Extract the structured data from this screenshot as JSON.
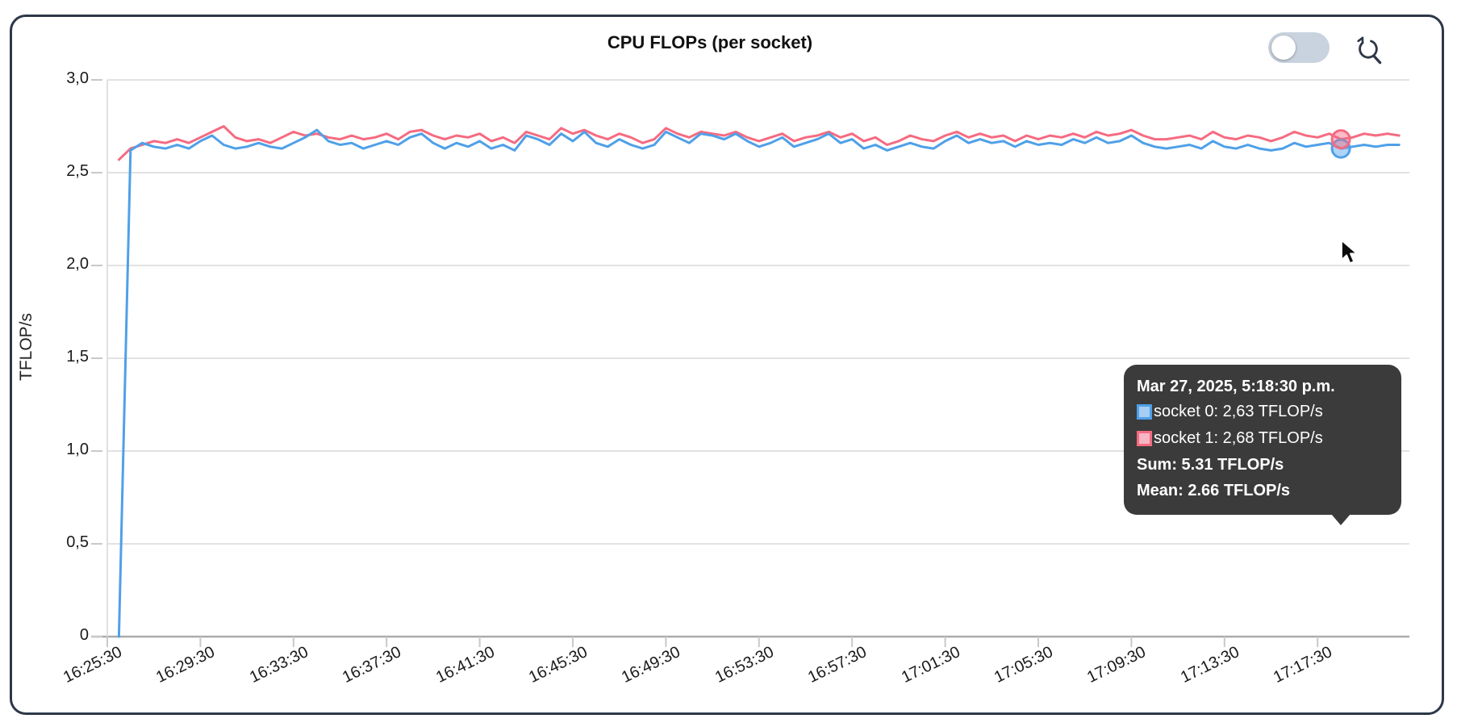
{
  "header": {
    "title": "CPU FLOPs (per socket)"
  },
  "controls": {
    "toggle": {
      "name": "toggle-switch",
      "on": false
    },
    "reset_zoom": {
      "name": "reset-zoom-icon"
    }
  },
  "colors": {
    "socket0": "#4FA0E8",
    "socket1": "#F56B81",
    "socket0_swatch_fill": "#A6CDF2",
    "socket1_swatch_fill": "#F7B6C4",
    "grid": "#D9D9D9",
    "axis": "#ABABAB",
    "tick": "#C9C9C9",
    "tooltip_bg": "#3B3B3B",
    "panel_border": "#2D3748"
  },
  "y_axis": {
    "label": "TFLOP/s",
    "ticks": [
      "3,0",
      "2,5",
      "2,0",
      "1,5",
      "1,0",
      "0,5",
      "0"
    ],
    "tick_values": [
      3.0,
      2.5,
      2.0,
      1.5,
      1.0,
      0.5,
      0
    ]
  },
  "x_axis": {
    "ticks": [
      "16:25:30",
      "16:29:30",
      "16:33:30",
      "16:37:30",
      "16:41:30",
      "16:45:30",
      "16:49:30",
      "16:53:30",
      "16:57:30",
      "17:01:30",
      "17:05:30",
      "17:09:30",
      "17:13:30",
      "17:17:30"
    ]
  },
  "tooltip": {
    "title": "Mar 27, 2025, 5:18:30 p.m.",
    "rows": [
      {
        "label": "socket 0: 2,63 TFLOP/s"
      },
      {
        "label": "socket 1: 2,68 TFLOP/s"
      }
    ],
    "sum": "Sum: 5.31 TFLOP/s",
    "mean": "Mean: 2.66 TFLOP/s"
  },
  "chart_data": {
    "type": "line",
    "title": "CPU FLOPs (per socket)",
    "xlabel": "",
    "ylabel": "TFLOP/s",
    "ylim": [
      0,
      3.0
    ],
    "x_start": "16:26:00",
    "x_interval_seconds": 30,
    "x_tick_labels": [
      "16:25:30",
      "16:29:30",
      "16:33:30",
      "16:37:30",
      "16:41:30",
      "16:45:30",
      "16:49:30",
      "16:53:30",
      "16:57:30",
      "17:01:30",
      "17:05:30",
      "17:09:30",
      "17:13:30",
      "17:17:30"
    ],
    "grid": "horizontal-only",
    "legend_position": "tooltip",
    "hover": {
      "index": 105,
      "time": "17:18:30",
      "socket0": 2.63,
      "socket1": 2.68,
      "sum": 5.31,
      "mean": 2.66
    },
    "series": [
      {
        "name": "socket 0",
        "color": "#4FA0E8",
        "values": [
          0,
          2.62,
          2.66,
          2.64,
          2.63,
          2.65,
          2.63,
          2.67,
          2.7,
          2.65,
          2.63,
          2.64,
          2.66,
          2.64,
          2.63,
          2.66,
          2.69,
          2.73,
          2.67,
          2.65,
          2.66,
          2.63,
          2.65,
          2.67,
          2.65,
          2.69,
          2.71,
          2.66,
          2.63,
          2.66,
          2.64,
          2.67,
          2.63,
          2.65,
          2.62,
          2.7,
          2.68,
          2.65,
          2.71,
          2.67,
          2.72,
          2.66,
          2.64,
          2.68,
          2.65,
          2.63,
          2.65,
          2.72,
          2.69,
          2.66,
          2.71,
          2.7,
          2.68,
          2.71,
          2.67,
          2.64,
          2.66,
          2.69,
          2.64,
          2.66,
          2.68,
          2.71,
          2.66,
          2.68,
          2.63,
          2.65,
          2.62,
          2.64,
          2.66,
          2.64,
          2.63,
          2.67,
          2.7,
          2.66,
          2.68,
          2.66,
          2.67,
          2.64,
          2.67,
          2.65,
          2.66,
          2.65,
          2.68,
          2.66,
          2.69,
          2.66,
          2.67,
          2.7,
          2.66,
          2.64,
          2.63,
          2.64,
          2.65,
          2.63,
          2.67,
          2.64,
          2.63,
          2.65,
          2.63,
          2.62,
          2.63,
          2.66,
          2.64,
          2.65,
          2.66,
          2.63,
          2.64,
          2.65,
          2.64,
          2.65,
          2.65
        ]
      },
      {
        "name": "socket 1",
        "color": "#F56B81",
        "values": [
          2.57,
          2.63,
          2.65,
          2.67,
          2.66,
          2.68,
          2.66,
          2.69,
          2.72,
          2.75,
          2.69,
          2.67,
          2.68,
          2.66,
          2.69,
          2.72,
          2.7,
          2.71,
          2.69,
          2.68,
          2.7,
          2.68,
          2.69,
          2.71,
          2.68,
          2.72,
          2.73,
          2.7,
          2.68,
          2.7,
          2.69,
          2.71,
          2.67,
          2.69,
          2.66,
          2.72,
          2.7,
          2.68,
          2.74,
          2.71,
          2.73,
          2.7,
          2.68,
          2.71,
          2.69,
          2.66,
          2.68,
          2.74,
          2.71,
          2.69,
          2.72,
          2.71,
          2.7,
          2.72,
          2.69,
          2.67,
          2.69,
          2.71,
          2.67,
          2.69,
          2.7,
          2.72,
          2.69,
          2.71,
          2.67,
          2.69,
          2.65,
          2.67,
          2.7,
          2.68,
          2.67,
          2.7,
          2.72,
          2.69,
          2.71,
          2.69,
          2.7,
          2.67,
          2.7,
          2.68,
          2.7,
          2.69,
          2.71,
          2.69,
          2.72,
          2.7,
          2.71,
          2.73,
          2.7,
          2.68,
          2.68,
          2.69,
          2.7,
          2.68,
          2.72,
          2.69,
          2.68,
          2.7,
          2.69,
          2.67,
          2.69,
          2.72,
          2.7,
          2.69,
          2.71,
          2.68,
          2.69,
          2.71,
          2.7,
          2.71,
          2.7
        ]
      }
    ]
  }
}
